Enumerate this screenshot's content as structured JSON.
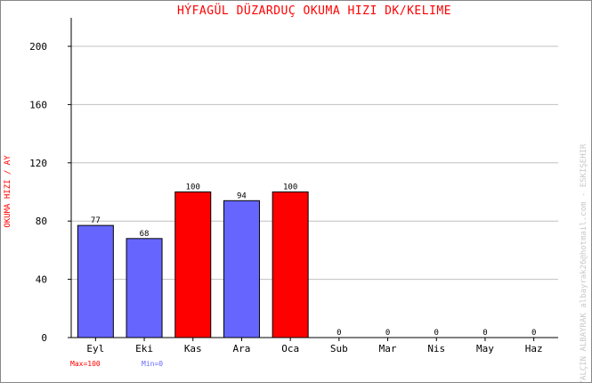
{
  "chart_data": {
    "type": "bar",
    "title": "HÝFAGÜL DÜZARDUÇ   OKUMA HIZI  DK/KELIME",
    "ylabel": "OKUMA HIZI / AY",
    "xlabel": "",
    "ylim": [
      0,
      200
    ],
    "yticks": [
      0,
      40,
      80,
      120,
      160,
      200
    ],
    "grid": true,
    "categories": [
      "Eyl",
      "Eki",
      "Kas",
      "Ara",
      "Oca",
      "Sub",
      "Mar",
      "Nis",
      "May",
      "Haz"
    ],
    "values": [
      77,
      68,
      100,
      94,
      100,
      0,
      0,
      0,
      0,
      0
    ],
    "colors": {
      "normal": "#6666ff",
      "max": "#ff0000",
      "grid": "#c0c0c0",
      "bar_border": "#000000"
    },
    "max_label": "Max=100",
    "min_label": "Min=0",
    "max_color": "#ff0000",
    "min_color": "#6666ff",
    "side_credit": "YALÇIN ALBAYRAK  albayrak26@hotmail.com - ESKIŞEHIR"
  }
}
